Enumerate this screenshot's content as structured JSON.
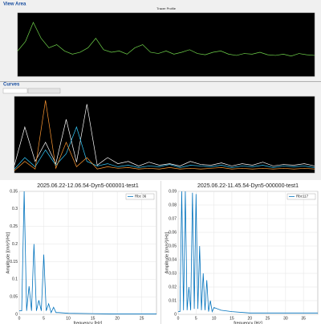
{
  "panels": {
    "view_area": "View Area",
    "curves": "Curves"
  },
  "chart_data": [
    {
      "type": "line",
      "title": "Tracer Profile",
      "background": "#000000",
      "x": [
        0,
        5,
        10,
        15,
        20,
        25,
        30,
        35,
        40,
        45,
        50,
        55,
        60,
        65,
        70,
        75,
        80,
        85,
        90,
        95,
        100,
        105,
        110,
        115,
        120,
        125,
        130,
        135,
        140,
        145,
        150,
        155,
        160,
        165,
        170,
        175,
        180,
        185,
        190
      ],
      "xlim": [
        0,
        190
      ],
      "ylim": [
        0,
        100
      ],
      "series": [
        {
          "color": "#6fd34a",
          "values": [
            40,
            55,
            85,
            60,
            45,
            50,
            40,
            35,
            38,
            45,
            60,
            42,
            38,
            40,
            35,
            45,
            50,
            38,
            36,
            40,
            35,
            38,
            42,
            36,
            34,
            38,
            40,
            35,
            33,
            36,
            35,
            38,
            34,
            33,
            35,
            32,
            36,
            34,
            33
          ]
        }
      ]
    },
    {
      "type": "line",
      "background": "#000000",
      "x": [
        0,
        1,
        2,
        3,
        4,
        5,
        6,
        7,
        8,
        9,
        10,
        11,
        12,
        13,
        14,
        15,
        16,
        17,
        18,
        19,
        20,
        21,
        22,
        23,
        24,
        25,
        26,
        27,
        28,
        29
      ],
      "xlim": [
        0,
        29
      ],
      "ylim": [
        0,
        100
      ],
      "series": [
        {
          "color": "#ffffff",
          "values": [
            10,
            60,
            15,
            40,
            12,
            70,
            14,
            90,
            10,
            20,
            12,
            15,
            9,
            14,
            10,
            12,
            9,
            15,
            11,
            10,
            13,
            9,
            12,
            10,
            14,
            9,
            11,
            10,
            12,
            9
          ]
        },
        {
          "color": "#33ccff",
          "values": [
            5,
            20,
            8,
            30,
            10,
            25,
            60,
            15,
            9,
            12,
            8,
            10,
            7,
            9,
            8,
            11,
            7,
            10,
            9,
            8,
            10,
            7,
            9,
            8,
            10,
            7,
            9,
            8,
            9,
            7
          ]
        },
        {
          "color": "#ff9933",
          "values": [
            3,
            15,
            5,
            95,
            6,
            40,
            8,
            20,
            5,
            8,
            6,
            7,
            5,
            6,
            5,
            7,
            5,
            6,
            5,
            6,
            7,
            5,
            6,
            5,
            6,
            5,
            6,
            5,
            6,
            5
          ]
        }
      ]
    },
    {
      "type": "line",
      "title": "2025.06.22-12.06.54-Dyn5-000001-test1",
      "xlabel": "frequency [Hz]",
      "ylabel": "Amplitude [(m/s²)/Hz]",
      "x": [
        0,
        0.5,
        1,
        1.5,
        2,
        2.5,
        3,
        3.5,
        4,
        4.5,
        5,
        5.5,
        6,
        6.5,
        7,
        7.5,
        8,
        10,
        15,
        20,
        25,
        28
      ],
      "xlim": [
        0,
        28
      ],
      "ylim": [
        0,
        0.35
      ],
      "xticks": [
        0,
        5,
        10,
        15,
        20,
        25
      ],
      "yticks": [
        0,
        0.05,
        0.1,
        0.15,
        0.2,
        0.25,
        0.3,
        0.35
      ],
      "grid": true,
      "series": [
        {
          "name": "Rbc 36",
          "color": "#0072bd",
          "values": [
            0.01,
            0.01,
            0.35,
            0.01,
            0.08,
            0.01,
            0.2,
            0.01,
            0.04,
            0.01,
            0.17,
            0.01,
            0.03,
            0.005,
            0.02,
            0.005,
            0.005,
            0.003,
            0.002,
            0.001,
            0.001,
            0.001
          ]
        }
      ]
    },
    {
      "type": "line",
      "title": "2025.06.22-11.45.54-Dyn5-000000-test1",
      "xlabel": "frequency [Hz]",
      "ylabel": "Amplitude [(m/s²)/Hz]",
      "x": [
        0,
        0.5,
        1,
        1.5,
        2,
        2.5,
        3,
        3.5,
        4,
        4.5,
        5,
        5.5,
        6,
        6.5,
        7,
        7.5,
        8,
        8.5,
        9,
        9.5,
        10,
        12,
        15,
        20,
        25,
        30,
        35,
        39
      ],
      "xlim": [
        0,
        39
      ],
      "ylim": [
        0,
        0.09
      ],
      "xticks": [
        0,
        5,
        10,
        15,
        20,
        25,
        30,
        35
      ],
      "yticks": [
        0,
        0.01,
        0.02,
        0.03,
        0.04,
        0.05,
        0.06,
        0.07,
        0.08,
        0.09
      ],
      "grid": true,
      "series": [
        {
          "name": "Rbc117",
          "color": "#0072bd",
          "values": [
            0.002,
            0.002,
            0.09,
            0.003,
            0.09,
            0.003,
            0.02,
            0.003,
            0.089,
            0.004,
            0.088,
            0.004,
            0.05,
            0.003,
            0.03,
            0.003,
            0.025,
            0.002,
            0.01,
            0.002,
            0.005,
            0.003,
            0.002,
            0.001,
            0.001,
            0.001,
            0.001,
            0.001
          ]
        }
      ]
    }
  ]
}
